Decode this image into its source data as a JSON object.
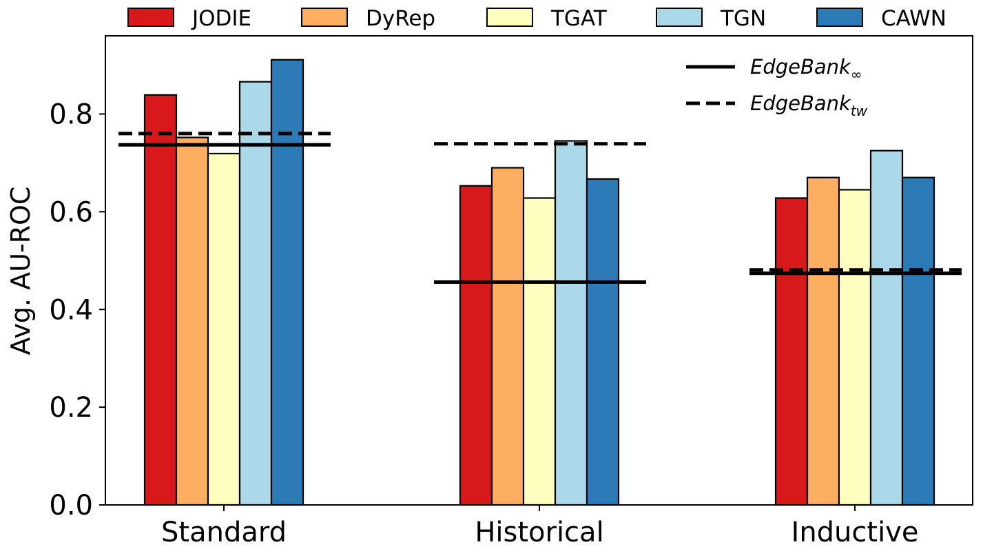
{
  "chart_data": {
    "type": "bar",
    "title": "",
    "xlabel": "",
    "ylabel": "Avg. AU-ROC",
    "ylim": [
      0,
      0.96
    ],
    "yticks": [
      "0.0",
      "0.2",
      "0.4",
      "0.6",
      "0.8"
    ],
    "grid": false,
    "legend_position": "top",
    "categories": [
      "Standard",
      "Historical",
      "Inductive"
    ],
    "series": [
      {
        "name": "JODIE",
        "color": "#d7191c",
        "values": [
          0.839,
          0.653,
          0.628
        ]
      },
      {
        "name": "DyRep",
        "color": "#fdae61",
        "values": [
          0.752,
          0.69,
          0.67
        ]
      },
      {
        "name": "TGAT",
        "color": "#ffffbf",
        "values": [
          0.719,
          0.628,
          0.645
        ]
      },
      {
        "name": "TGN",
        "color": "#abd9e9",
        "values": [
          0.866,
          0.745,
          0.725
        ]
      },
      {
        "name": "CAWN",
        "color": "#2c7bb6",
        "values": [
          0.911,
          0.667,
          0.67
        ]
      }
    ],
    "reference_lines": [
      {
        "name_main": "EdgeBank",
        "name_sub": "∞",
        "style": "solid",
        "values": [
          0.737,
          0.456,
          0.474
        ]
      },
      {
        "name_main": "EdgeBank",
        "name_sub": "tw",
        "style": "dashed",
        "values": [
          0.76,
          0.739,
          0.481
        ]
      }
    ]
  }
}
